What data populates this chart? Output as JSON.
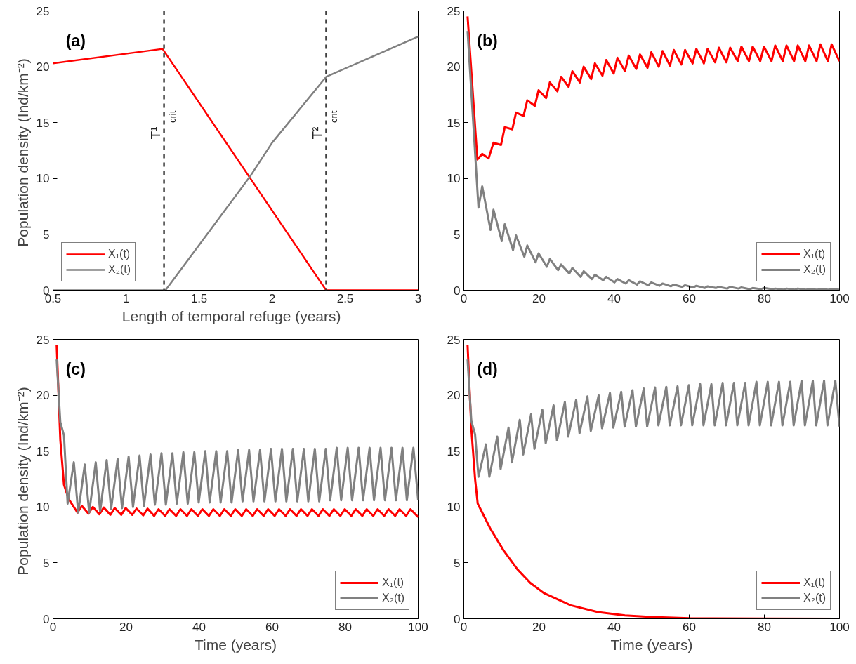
{
  "chart_data": [
    {
      "type": "line",
      "annotations": [
        "(a)"
      ],
      "xlabel": "Length of  temporal  refuge (years)",
      "ylabel": "Population  density (Ind/km⁻²)",
      "xlim": [
        0.5,
        3
      ],
      "ylim": [
        0,
        25
      ],
      "xticks": [
        0.5,
        1,
        1.5,
        2,
        2.5,
        3
      ],
      "yticks": [
        0,
        5,
        10,
        15,
        20,
        25
      ],
      "legend": "bottom left",
      "grid": false,
      "ref_lines": [
        {
          "axis": "x",
          "value": 1.26,
          "label": "T¹$_{crit}$",
          "color": "#404040",
          "line_style": "dashed"
        },
        {
          "axis": "x",
          "value": 2.37,
          "label": "T²$_{crit}$",
          "color": "#404040",
          "line_style": "dashed"
        }
      ],
      "series": [
        {
          "name": "X₁(t)",
          "color": "#ff0000",
          "x": [
            0.5,
            1.25,
            2.37,
            3
          ],
          "values": [
            20.3,
            21.6,
            0,
            0
          ]
        },
        {
          "name": "X₂(t)",
          "color": "#808080",
          "x": [
            0.5,
            1.27,
            1.85,
            2.0,
            2.37,
            3
          ],
          "values": [
            0,
            0,
            10.2,
            13.2,
            19.1,
            22.7
          ]
        }
      ]
    },
    {
      "type": "line",
      "annotations": [
        "(b)"
      ],
      "xlim": [
        0,
        100
      ],
      "ylim": [
        0,
        25
      ],
      "xticks": [
        0,
        20,
        40,
        60,
        80,
        100
      ],
      "yticks": [
        0,
        5,
        10,
        15,
        20,
        25
      ],
      "legend": "bottom right",
      "grid": false,
      "series": [
        {
          "name": "X₁(t)",
          "color": "#ff0000",
          "x": [
            1,
            3.6,
            4.9,
            6.6,
            7.9,
            9.9,
            10.9,
            12.9,
            13.9,
            15.9,
            16.9,
            18.9,
            19.9,
            21.9,
            22.9,
            24.9,
            25.9,
            27.9,
            28.9,
            30.9,
            31.9,
            33.9,
            34.9,
            36.9,
            37.9,
            39.9,
            40.9,
            42.9,
            43.9,
            45.9,
            46.9,
            48.9,
            49.9,
            51.9,
            52.9,
            54.9,
            55.9,
            57.9,
            58.9,
            60.9,
            61.9,
            63.9,
            64.9,
            66.9,
            67.9,
            69.9,
            70.9,
            72.9,
            73.9,
            75.9,
            76.9,
            78.9,
            79.9,
            81.9,
            82.9,
            84.9,
            85.9,
            87.9,
            88.9,
            90.9,
            91.9,
            93.9,
            94.9,
            96.9,
            97.9,
            100
          ],
          "values": [
            24.5,
            11.7,
            12.2,
            11.8,
            13.2,
            13.0,
            14.6,
            14.4,
            15.9,
            15.6,
            17.0,
            16.5,
            17.9,
            17.2,
            18.6,
            17.8,
            19.1,
            18.2,
            19.6,
            18.6,
            20.0,
            18.9,
            20.3,
            19.2,
            20.6,
            19.4,
            20.8,
            19.6,
            21.0,
            19.8,
            21.1,
            19.9,
            21.3,
            20.0,
            21.4,
            20.1,
            21.5,
            20.2,
            21.5,
            20.3,
            21.6,
            20.3,
            21.6,
            20.4,
            21.7,
            20.4,
            21.7,
            20.5,
            21.8,
            20.5,
            21.8,
            20.5,
            21.8,
            20.5,
            21.9,
            20.5,
            21.9,
            20.5,
            21.9,
            20.5,
            21.9,
            20.5,
            22.0,
            20.5,
            22.0,
            20.5
          ]
        },
        {
          "name": "X₂(t)",
          "color": "#808080",
          "x": [
            1,
            3.9,
            4.9,
            7.1,
            7.9,
            10.1,
            10.9,
            13.1,
            13.9,
            16.1,
            16.9,
            19.1,
            19.9,
            22.1,
            22.9,
            25.1,
            25.9,
            28.1,
            28.9,
            31.1,
            31.9,
            34.1,
            34.9,
            37.1,
            37.9,
            40.1,
            40.9,
            43.1,
            43.9,
            46.1,
            46.9,
            49.1,
            49.9,
            52.1,
            52.9,
            55.1,
            55.9,
            58.1,
            58.9,
            61.1,
            61.9,
            64.1,
            64.9,
            67.1,
            67.9,
            70.1,
            70.9,
            73.1,
            73.9,
            76.1,
            76.9,
            79.1,
            79.9,
            82.1,
            82.9,
            85.1,
            85.9,
            88.1,
            88.9,
            91.1,
            91.9,
            94.1,
            94.9,
            97.1,
            97.9,
            100
          ],
          "values": [
            23.2,
            7.4,
            9.3,
            5.4,
            7.2,
            4.4,
            5.9,
            3.6,
            4.9,
            3.0,
            4.0,
            2.5,
            3.3,
            2.1,
            2.8,
            1.8,
            2.3,
            1.5,
            2.0,
            1.2,
            1.7,
            1.0,
            1.4,
            0.9,
            1.2,
            0.7,
            1.0,
            0.6,
            0.9,
            0.5,
            0.8,
            0.45,
            0.7,
            0.4,
            0.6,
            0.35,
            0.5,
            0.3,
            0.45,
            0.25,
            0.4,
            0.2,
            0.35,
            0.2,
            0.3,
            0.15,
            0.3,
            0.15,
            0.25,
            0.1,
            0.2,
            0.1,
            0.2,
            0.1,
            0.15,
            0.05,
            0.15,
            0.05,
            0.15,
            0.05,
            0.1,
            0.05,
            0.1,
            0.05,
            0.1,
            0.05
          ]
        }
      ]
    },
    {
      "type": "line",
      "annotations": [
        "(c)"
      ],
      "xlabel": "Time (years)",
      "ylabel": "Population  density (Ind/km⁻²)",
      "xlim": [
        0,
        100
      ],
      "ylim": [
        0,
        25
      ],
      "xticks": [
        0,
        20,
        40,
        60,
        80,
        100
      ],
      "yticks": [
        0,
        5,
        10,
        15,
        20,
        25
      ],
      "legend": "bottom right",
      "grid": false,
      "series": [
        {
          "name": "X₁(t)",
          "color": "#ff0000",
          "x": [
            1,
            2,
            3,
            4.3,
            6.7,
            7.9,
            9.7,
            10.9,
            12.7,
            13.9,
            15.7,
            16.9,
            18.7,
            19.9,
            21.7,
            22.9,
            24.7,
            25.9,
            27.7,
            28.9,
            30.7,
            31.9,
            33.7,
            34.9,
            36.7,
            37.9,
            39.7,
            40.9,
            42.7,
            43.9,
            45.7,
            46.9,
            48.7,
            49.9,
            51.7,
            52.9,
            54.7,
            55.9,
            57.7,
            58.9,
            60.7,
            61.9,
            63.7,
            64.9,
            66.7,
            67.9,
            69.7,
            70.9,
            72.7,
            73.9,
            75.7,
            76.9,
            78.7,
            79.9,
            81.7,
            82.9,
            84.7,
            85.9,
            87.7,
            88.9,
            90.7,
            91.9,
            93.7,
            94.9,
            96.7,
            97.9,
            100
          ],
          "values": [
            24.5,
            16,
            12,
            10.7,
            9.5,
            10.1,
            9.4,
            10.0,
            9.35,
            9.95,
            9.3,
            9.9,
            9.3,
            9.9,
            9.3,
            9.85,
            9.25,
            9.85,
            9.2,
            9.8,
            9.2,
            9.8,
            9.2,
            9.8,
            9.2,
            9.8,
            9.2,
            9.8,
            9.2,
            9.8,
            9.2,
            9.8,
            9.2,
            9.8,
            9.2,
            9.8,
            9.2,
            9.8,
            9.2,
            9.8,
            9.2,
            9.8,
            9.2,
            9.8,
            9.2,
            9.8,
            9.2,
            9.8,
            9.2,
            9.8,
            9.2,
            9.8,
            9.2,
            9.8,
            9.2,
            9.8,
            9.2,
            9.8,
            9.2,
            9.8,
            9.2,
            9.8,
            9.2,
            9.8,
            9.2,
            9.8,
            9.1
          ]
        },
        {
          "name": "X₂(t)",
          "color": "#808080",
          "x": [
            1,
            2,
            3,
            4,
            5.7,
            6.9,
            8.7,
            9.9,
            11.7,
            12.9,
            14.7,
            15.9,
            17.7,
            18.9,
            20.7,
            21.9,
            23.7,
            24.9,
            26.7,
            27.9,
            29.7,
            30.9,
            32.7,
            33.9,
            35.7,
            36.9,
            38.7,
            39.9,
            41.7,
            42.9,
            44.7,
            45.9,
            47.7,
            48.9,
            50.7,
            51.9,
            53.7,
            54.9,
            56.7,
            57.9,
            59.7,
            60.9,
            62.7,
            63.9,
            65.7,
            66.9,
            68.7,
            69.9,
            71.7,
            72.9,
            74.7,
            75.9,
            77.7,
            78.9,
            80.7,
            81.9,
            83.7,
            84.9,
            86.7,
            87.9,
            89.7,
            90.9,
            92.7,
            93.9,
            95.7,
            96.9,
            98.7,
            100
          ],
          "values": [
            23.2,
            17.6,
            16.4,
            10.3,
            14.0,
            9.5,
            13.8,
            9.5,
            14.0,
            9.6,
            14.2,
            9.8,
            14.3,
            9.9,
            14.5,
            10.0,
            14.6,
            10.1,
            14.7,
            10.2,
            14.8,
            10.2,
            14.8,
            10.3,
            14.9,
            10.3,
            14.9,
            10.4,
            15.0,
            10.4,
            15.0,
            10.4,
            15.0,
            10.4,
            15.1,
            10.5,
            15.1,
            10.5,
            15.1,
            10.5,
            15.2,
            10.5,
            15.2,
            10.5,
            15.2,
            10.5,
            15.2,
            10.5,
            15.2,
            10.5,
            15.2,
            10.6,
            15.3,
            10.6,
            15.3,
            10.6,
            15.3,
            10.6,
            15.3,
            10.6,
            15.3,
            10.6,
            15.3,
            10.6,
            15.3,
            10.6,
            15.3,
            10.6
          ]
        }
      ]
    },
    {
      "type": "line",
      "annotations": [
        "(d)"
      ],
      "xlabel": "Time (years)",
      "xlim": [
        0,
        100
      ],
      "ylim": [
        0,
        25
      ],
      "xticks": [
        0,
        20,
        40,
        60,
        80,
        100
      ],
      "yticks": [
        0,
        5,
        10,
        15,
        20,
        25
      ],
      "legend": "bottom right",
      "grid": false,
      "series": [
        {
          "name": "X₁(t)",
          "color": "#ff0000",
          "x": [
            1,
            2,
            3,
            3.7,
            7,
            10.6,
            14.2,
            17.7,
            21.3,
            28.5,
            35.7,
            42.9,
            50,
            60,
            80,
            100
          ],
          "values": [
            24.5,
            17,
            12.5,
            10.3,
            8.1,
            6.1,
            4.45,
            3.2,
            2.3,
            1.2,
            0.6,
            0.3,
            0.15,
            0.05,
            0.01,
            0
          ]
        },
        {
          "name": "X₂(t)",
          "color": "#808080",
          "x": [
            1,
            2,
            3,
            3.9,
            5.9,
            6.8,
            8.9,
            9.8,
            11.9,
            12.8,
            14.9,
            15.8,
            17.9,
            18.8,
            20.9,
            21.8,
            23.9,
            24.8,
            26.9,
            27.8,
            29.9,
            30.8,
            32.9,
            33.8,
            35.9,
            36.8,
            38.9,
            39.8,
            41.9,
            42.8,
            44.9,
            45.8,
            47.9,
            48.8,
            50.9,
            51.8,
            53.9,
            54.8,
            56.9,
            57.8,
            59.9,
            60.8,
            62.9,
            63.8,
            65.9,
            66.8,
            68.9,
            69.8,
            71.9,
            72.8,
            74.9,
            75.8,
            77.9,
            78.8,
            80.9,
            81.8,
            83.9,
            84.8,
            86.9,
            87.8,
            89.9,
            90.8,
            92.9,
            93.8,
            95.9,
            96.8,
            98.9,
            100
          ],
          "values": [
            23.2,
            17.7,
            16.5,
            12.7,
            15.6,
            12.7,
            16.3,
            13.4,
            17.1,
            14.0,
            17.8,
            14.7,
            18.3,
            15.2,
            18.7,
            15.7,
            19.1,
            15.95,
            19.4,
            16.3,
            19.6,
            16.6,
            19.9,
            16.8,
            20.0,
            17.05,
            20.2,
            17.1,
            20.3,
            17.2,
            20.45,
            17.2,
            20.6,
            17.2,
            20.7,
            17.3,
            20.75,
            17.3,
            20.8,
            17.3,
            20.9,
            17.3,
            21.0,
            17.3,
            21.0,
            17.3,
            21.1,
            17.3,
            21.1,
            17.3,
            21.1,
            17.3,
            21.2,
            17.3,
            21.2,
            17.3,
            21.2,
            17.3,
            21.2,
            17.3,
            21.3,
            17.3,
            21.3,
            17.3,
            21.3,
            17.3,
            21.3,
            17.2
          ]
        }
      ]
    }
  ]
}
